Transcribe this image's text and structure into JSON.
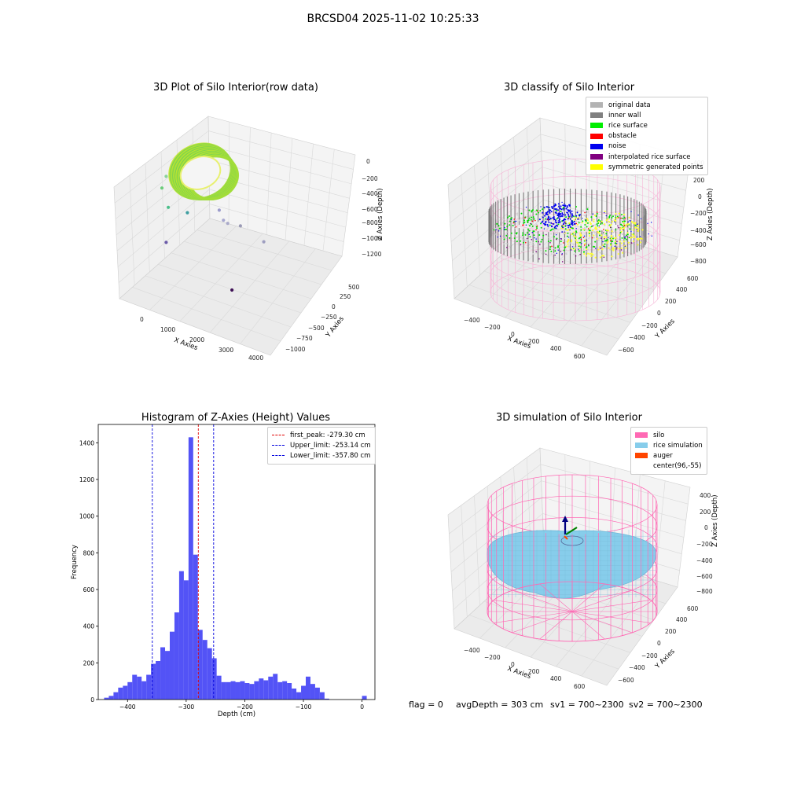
{
  "suptitle": "BRCSD04 2025-11-02 10:25:33",
  "colors": {
    "wall_face": "#f2f2f2",
    "wall_grid": "#d9d9d9",
    "axis_line": "#333333",
    "hist_bar": "#4a4af5",
    "peak_line": "#e00000",
    "limit_line": "#0000dd",
    "silo_pink": "#ff69b4",
    "rice_blue": "#87cdeb",
    "auger_orange": "#ff4500"
  },
  "raw_plot": {
    "title": "3D Plot of Silo Interior(row data)",
    "x_label": "X Axies",
    "y_label": "Y Axies",
    "z_label": "Z Axies (Depth)",
    "x_ticks": [
      "0",
      "1000",
      "2000",
      "3000",
      "4000"
    ],
    "y_ticks": [
      "500",
      "250",
      "0",
      "−250",
      "−500",
      "−750",
      "−1000"
    ],
    "z_ticks": [
      "0",
      "−200",
      "−400",
      "−600",
      "−800",
      "−1000",
      "−1200"
    ],
    "outliers": [
      {
        "x": 2.2,
        "y": 7.6,
        "z": 1.2,
        "color": "#8ad39a"
      },
      {
        "x": 2.0,
        "y": 7.0,
        "z": 2.6,
        "color": "#6ccc7b"
      },
      {
        "x": 2.3,
        "y": 5.9,
        "z": 3.9,
        "color": "#4bbf8a"
      },
      {
        "x": 3.2,
        "y": 5.6,
        "z": 4.3,
        "color": "#3e9ea0"
      },
      {
        "x": 4.7,
        "y": 5.9,
        "z": 5.7,
        "color": "#9c9ccc"
      },
      {
        "x": 4.9,
        "y": 5.2,
        "z": 5.1,
        "color": "#a8a8d0"
      },
      {
        "x": 5.1,
        "y": 5.0,
        "z": 5.1,
        "color": "#a9a9c9"
      },
      {
        "x": 5.7,
        "y": 4.8,
        "z": 4.7,
        "color": "#9a9ab5"
      },
      {
        "x": 6.8,
        "y": 3.8,
        "z": 4.8,
        "color": "#9e9ec0"
      },
      {
        "x": 2.2,
        "y": 3.5,
        "z": 2.2,
        "color": "#6a5aa8"
      },
      {
        "x": 5.3,
        "y": 0.4,
        "z": 1.5,
        "color": "#3f1156"
      }
    ]
  },
  "classify_plot": {
    "title": "3D classify of Silo Interior",
    "x_label": "X Axies",
    "y_label": "Y Axies",
    "z_label": "Z Axies (Depth)",
    "x_ticks": [
      "−400",
      "−200",
      "0",
      "200",
      "400",
      "600"
    ],
    "y_ticks": [
      "600",
      "400",
      "200",
      "0",
      "−200",
      "−400",
      "−600"
    ],
    "z_ticks": [
      "400",
      "200",
      "0",
      "−200",
      "−400",
      "−600",
      "−800"
    ],
    "legend": [
      {
        "label": "original data",
        "color": "#b3b3b3"
      },
      {
        "label": "inner wall",
        "color": "#808080"
      },
      {
        "label": "rice surface",
        "color": "#00ee00"
      },
      {
        "label": "obstacle",
        "color": "#ff0000"
      },
      {
        "label": "noise",
        "color": "#0000ee"
      },
      {
        "label": "interpolated rice surface",
        "color": "#800080"
      },
      {
        "label": "symmetric generated points",
        "color": "#ffff00"
      }
    ]
  },
  "histogram": {
    "title": "Histogram of Z-Axies (Height) Values",
    "xlabel": "Depth (cm)",
    "ylabel": "Frequency",
    "x_ticks": [
      -400,
      -300,
      -200,
      -100,
      0
    ],
    "y_ticks": [
      0,
      200,
      400,
      600,
      800,
      1000,
      1200,
      1400
    ],
    "x_tick_labels": [
      "−400",
      "−300",
      "−200",
      "−100",
      "0"
    ],
    "y_tick_labels": [
      "0",
      "200",
      "400",
      "600",
      "800",
      "1000",
      "1200",
      "1400"
    ],
    "legend": [
      {
        "label": "first_peak: -279.30 cm",
        "color": "#e00000"
      },
      {
        "label": "Upper_limit: -253.14 cm",
        "color": "#0000dd"
      },
      {
        "label": "Lower_limit: -357.80 cm",
        "color": "#0000dd"
      }
    ]
  },
  "simulation_plot": {
    "title": "3D simulation of Silo Interior",
    "x_label": "X Axies",
    "y_label": "Y Axies",
    "z_label": "Z Axies (Depth)",
    "x_ticks": [
      "−400",
      "−200",
      "0",
      "200",
      "400",
      "600"
    ],
    "y_ticks": [
      "600",
      "400",
      "200",
      "0",
      "−200",
      "−400",
      "−600"
    ],
    "z_ticks": [
      "400",
      "200",
      "0",
      "−200",
      "−400",
      "−600",
      "−800"
    ],
    "legend": [
      {
        "label": "silo",
        "color": "#ff69b4"
      },
      {
        "label": "rice simulation",
        "color": "#87cdeb"
      },
      {
        "label": "auger",
        "color": "#ff4500"
      },
      {
        "label": "center(96,-55)",
        "color": ""
      }
    ]
  },
  "status": {
    "flag": "flag = 0",
    "avg_depth": "avgDepth = 303 cm",
    "sv1": "sv1 = 700~2300",
    "sv2": "sv2 = 700~2300"
  },
  "chart_data": [
    {
      "type": "scatter",
      "title": "3D Plot of Silo Interior(row data)",
      "xlabel": "X Axies",
      "ylabel": "Y Axies",
      "zlabel": "Z Axies (Depth)",
      "xlim": [
        -500,
        4200
      ],
      "ylim": [
        -1100,
        600
      ],
      "zlim": [
        -1300,
        50
      ],
      "grid": true
    },
    {
      "type": "scatter",
      "title": "3D classify of Silo Interior",
      "xlabel": "X Axies",
      "ylabel": "Y Axies",
      "zlabel": "Z Axies (Depth)",
      "xlim": [
        -500,
        700
      ],
      "ylim": [
        -700,
        700
      ],
      "zlim": [
        -900,
        400
      ],
      "series": [
        {
          "name": "original data"
        },
        {
          "name": "inner wall"
        },
        {
          "name": "rice surface"
        },
        {
          "name": "obstacle"
        },
        {
          "name": "noise"
        },
        {
          "name": "interpolated rice surface"
        },
        {
          "name": "symmetric generated points"
        }
      ],
      "legend_position": "top-right",
      "grid": true
    },
    {
      "type": "bar",
      "title": "Histogram of Z-Axies (Height) Values",
      "xlabel": "Depth (cm)",
      "ylabel": "Frequency",
      "xlim": [
        -450,
        22
      ],
      "ylim": [
        0,
        1500
      ],
      "bin_width": 8,
      "bin_starts": [
        -440,
        -432,
        -424,
        -416,
        -408,
        -400,
        -392,
        -384,
        -376,
        -368,
        -360,
        -352,
        -344,
        -336,
        -328,
        -320,
        -312,
        -304,
        -296,
        -288,
        -280,
        -272,
        -264,
        -256,
        -248,
        -240,
        -232,
        -224,
        -216,
        -208,
        -200,
        -192,
        -184,
        -176,
        -168,
        -160,
        -152,
        -144,
        -136,
        -128,
        -120,
        -112,
        -104,
        -96,
        -88,
        -80,
        -72,
        -64,
        -56,
        -48,
        -40,
        -32,
        -24,
        -16,
        -8,
        0
      ],
      "values": [
        10,
        20,
        40,
        65,
        75,
        95,
        135,
        125,
        100,
        135,
        195,
        210,
        285,
        265,
        370,
        475,
        700,
        650,
        1430,
        790,
        380,
        325,
        280,
        225,
        130,
        95,
        95,
        100,
        95,
        100,
        90,
        85,
        100,
        115,
        105,
        125,
        140,
        95,
        100,
        90,
        60,
        40,
        75,
        125,
        85,
        65,
        40,
        5,
        0,
        0,
        0,
        0,
        0,
        0,
        0,
        20
      ],
      "vlines": [
        {
          "name": "first_peak: -279.30 cm",
          "x": -279.3
        },
        {
          "name": "Upper_limit: -253.14 cm",
          "x": -253.14
        },
        {
          "name": "Lower_limit: -357.80 cm",
          "x": -357.8
        }
      ],
      "legend_position": "top-right",
      "grid": false
    },
    {
      "type": "scatter",
      "title": "3D simulation of Silo Interior",
      "xlabel": "X Axies",
      "ylabel": "Y Axies",
      "zlabel": "Z Axies (Depth)",
      "xlim": [
        -500,
        700
      ],
      "ylim": [
        -700,
        700
      ],
      "zlim": [
        -900,
        450
      ],
      "series": [
        {
          "name": "silo"
        },
        {
          "name": "rice simulation"
        },
        {
          "name": "auger"
        }
      ],
      "center": [
        96,
        -55
      ],
      "legend_position": "top-right",
      "grid": true
    }
  ]
}
